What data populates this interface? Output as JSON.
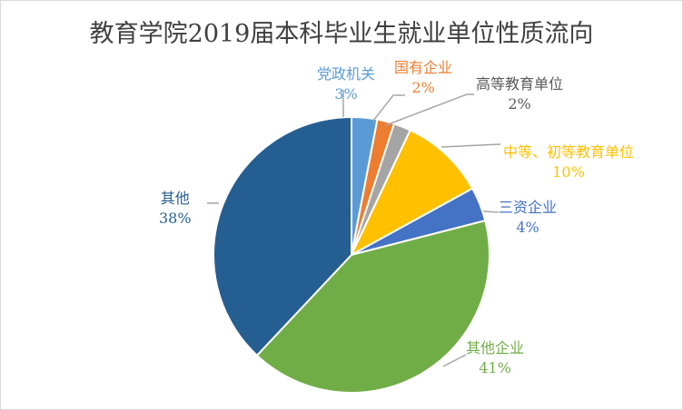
{
  "chart_data": {
    "type": "pie",
    "title": "教育学院2019届本科毕业生就业单位性质流向",
    "start": "top",
    "direction": "clockwise",
    "slices": [
      {
        "name": "党政机关",
        "value": 3,
        "label": "3%",
        "color": "#5B9BD5"
      },
      {
        "name": "国有企业",
        "value": 2,
        "label": "2%",
        "color": "#ED7D31"
      },
      {
        "name": "高等教育单位",
        "value": 2,
        "label": "2%",
        "color": "#A5A5A5",
        "text_color": "#595959"
      },
      {
        "name": "中等、初等教育单位",
        "value": 10,
        "label": "10%",
        "color": "#FFC000"
      },
      {
        "name": "三资企业",
        "value": 4,
        "label": "4%",
        "color": "#4472C4"
      },
      {
        "name": "其他企业",
        "value": 41,
        "label": "41%",
        "color": "#70AD47"
      },
      {
        "name": "其他",
        "value": 38,
        "label": "38%",
        "color": "#255E91"
      }
    ],
    "legend": "none"
  }
}
